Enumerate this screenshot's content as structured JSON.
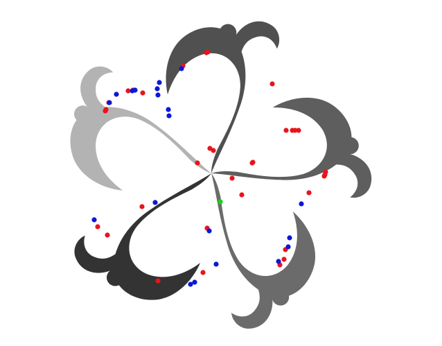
{
  "scene": {
    "background": "#ffffff",
    "swirl_count": 5,
    "swirl_colors": [
      "#b3b3b3",
      "#505050",
      "#5e5e5e",
      "#6b6b6b",
      "#333333"
    ]
  },
  "markers": {
    "colors": {
      "red": "#e8141c",
      "blue": "#0a18d8",
      "green": "#14d414"
    },
    "red_count": 34,
    "blue_count": 20,
    "green_count": 1
  }
}
